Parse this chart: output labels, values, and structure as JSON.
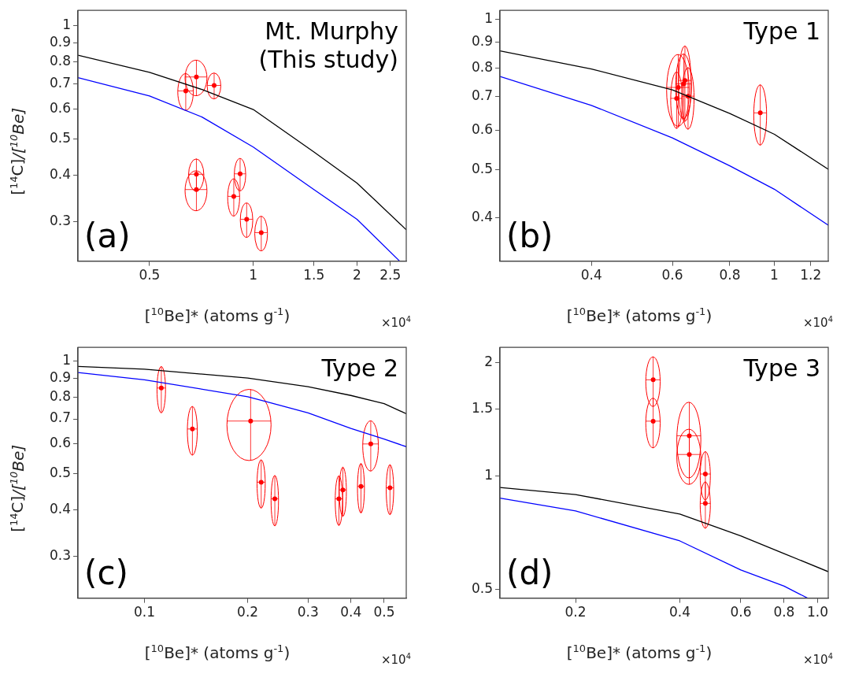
{
  "chart_data": [
    {
      "type": "scatter",
      "title": "Mt. Murphy\n(This study)",
      "xlabel": "[$^{10}$Be]* (atoms g$^{-1}$)",
      "ylabel": "[$^{14}$C]*/[$^{10}$Be]*",
      "annotations": [
        "(a)",
        "×10$^{4}$"
      ],
      "log": "xy",
      "xlim": [
        0.31,
        2.78
      ],
      "ylim": [
        0.236,
        1.098
      ],
      "xticks": [
        0.5,
        1,
        1.5,
        2,
        2.5
      ],
      "yticks": [
        0.3,
        0.4,
        0.5,
        0.6,
        0.7,
        0.8,
        0.9,
        1
      ],
      "series": [
        {
          "type": "line",
          "color": "#000000",
          "x": [
            0.31,
            0.5,
            0.71,
            1,
            1.5,
            2,
            2.78
          ],
          "values": [
            0.834,
            0.751,
            0.676,
            0.598,
            0.461,
            0.381,
            0.286
          ]
        },
        {
          "type": "line",
          "color": "#0000ff",
          "x": [
            0.31,
            0.5,
            0.71,
            1,
            1.5,
            2,
            2.66
          ],
          "values": [
            0.727,
            0.65,
            0.571,
            0.475,
            0.366,
            0.305,
            0.236
          ]
        },
        {
          "type": "scatter",
          "marker": "circle",
          "color": "#ff0000",
          "x": [
            0.637,
            0.684,
            0.77,
            0.684,
            0.684,
            0.916,
            0.878,
            0.957,
            1.055
          ],
          "values": [
            0.67,
            0.73,
            0.693,
            0.402,
            0.366,
            0.403,
            0.351,
            0.305,
            0.281
          ],
          "xerrors": [
            0.033,
            0.05,
            0.035,
            0.035,
            0.05,
            0.035,
            0.035,
            0.04,
            0.045
          ],
          "errors": [
            0.075,
            0.08,
            0.055,
            0.04,
            0.045,
            0.04,
            0.04,
            0.032,
            0.03
          ]
        }
      ]
    },
    {
      "type": "scatter",
      "title": "Type 1",
      "xlabel": "[$^{10}$Be]* (atoms g$^{-1}$)",
      "annotations": [
        "(b)",
        "×10$^{4}$"
      ],
      "log": "xy",
      "xlim": [
        0.253,
        1.31
      ],
      "ylim": [
        0.328,
        1.043
      ],
      "xticks": [
        0.4,
        0.6,
        0.8,
        1,
        1.2
      ],
      "yticks": [
        0.4,
        0.5,
        0.6,
        0.7,
        0.8,
        0.9,
        1
      ],
      "series": [
        {
          "type": "line",
          "color": "#000000",
          "x": [
            0.253,
            0.4,
            0.6,
            0.8,
            1,
            1.31
          ],
          "values": [
            0.865,
            0.796,
            0.723,
            0.648,
            0.589,
            0.501
          ]
        },
        {
          "type": "line",
          "color": "#0000ff",
          "x": [
            0.253,
            0.4,
            0.6,
            0.8,
            1,
            1.31
          ],
          "values": [
            0.769,
            0.673,
            0.579,
            0.509,
            0.457,
            0.387
          ]
        },
        {
          "type": "scatter",
          "marker": "circle",
          "color": "#ff0000",
          "x": [
            0.618,
            0.639,
            0.613,
            0.649,
            0.635,
            0.932
          ],
          "values": [
            0.731,
            0.755,
            0.695,
            0.702,
            0.743,
            0.65
          ],
          "xerrors": [
            0.035,
            0.02,
            0.018,
            0.02,
            0.025,
            0.03
          ],
          "errors": [
            0.12,
            0.13,
            0.09,
            0.1,
            0.11,
            0.09
          ]
        }
      ]
    },
    {
      "type": "scatter",
      "title": "Type 2",
      "xlabel": "[$^{10}$Be]* (atoms g$^{-1}$)",
      "ylabel": "[$^{14}$C]*/[$^{10}$Be]*",
      "annotations": [
        "(c)",
        "×10$^{4}$"
      ],
      "log": "xy",
      "xlim": [
        0.064,
        0.58
      ],
      "ylim": [
        0.232,
        1.088
      ],
      "xticks": [
        0.1,
        0.2,
        0.3,
        0.4,
        0.5
      ],
      "yticks": [
        0.3,
        0.4,
        0.5,
        0.6,
        0.7,
        0.8,
        0.9,
        1
      ],
      "series": [
        {
          "type": "line",
          "color": "#000000",
          "x": [
            0.064,
            0.1,
            0.2,
            0.3,
            0.4,
            0.5,
            0.58
          ],
          "values": [
            0.968,
            0.951,
            0.901,
            0.854,
            0.809,
            0.769,
            0.723
          ]
        },
        {
          "type": "line",
          "color": "#0000ff",
          "x": [
            0.064,
            0.1,
            0.2,
            0.3,
            0.4,
            0.5,
            0.58
          ],
          "values": [
            0.932,
            0.891,
            0.803,
            0.727,
            0.66,
            0.618,
            0.59
          ]
        },
        {
          "type": "scatter",
          "marker": "circle",
          "color": "#ff0000",
          "x": [
            0.112,
            0.138,
            0.204,
            0.219,
            0.24,
            0.369,
            0.379,
            0.428,
            0.457,
            0.52
          ],
          "values": [
            0.847,
            0.658,
            0.691,
            0.474,
            0.428,
            0.428,
            0.452,
            0.462,
            0.6,
            0.458
          ],
          "xerrors": [
            0.0032,
            0.0046,
            0.03,
            0.006,
            0.006,
            0.009,
            0.009,
            0.01,
            0.024,
            0.013
          ],
          "errors": [
            0.12,
            0.098,
            0.15,
            0.07,
            0.066,
            0.065,
            0.068,
            0.07,
            0.093,
            0.07
          ]
        }
      ]
    },
    {
      "type": "scatter",
      "title": "Type 3",
      "xlabel": "[$^{10}$Be]* (atoms g$^{-1}$)",
      "annotations": [
        "(d)",
        "×10$^{4}$"
      ],
      "log": "xy",
      "xlim": [
        0.121,
        1.073
      ],
      "ylim": [
        0.474,
        2.19
      ],
      "xticks": [
        0.2,
        0.4,
        0.6,
        0.8,
        {
          "value": 1,
          "label": "1.0"
        }
      ],
      "yticks": [
        0.5,
        1,
        1.5,
        2
      ],
      "series": [
        {
          "type": "line",
          "color": "#000000",
          "x": [
            0.121,
            0.2,
            0.4,
            0.6,
            0.8,
            1.073
          ],
          "values": [
            0.931,
            0.892,
            0.792,
            0.693,
            0.622,
            0.557
          ]
        },
        {
          "type": "line",
          "color": "#0000ff",
          "x": [
            0.121,
            0.2,
            0.4,
            0.6,
            0.8,
            0.935
          ],
          "values": [
            0.873,
            0.807,
            0.672,
            0.563,
            0.51,
            0.474
          ]
        },
        {
          "type": "scatter",
          "marker": "circle",
          "color": "#ff0000",
          "x": [
            0.335,
            0.335,
            0.426,
            0.426,
            0.474,
            0.474
          ],
          "values": [
            1.797,
            1.396,
            1.277,
            1.139,
            1.011,
            0.845
          ],
          "xerrors": [
            0.016,
            0.016,
            0.034,
            0.034,
            0.016,
            0.016
          ],
          "errors": [
            0.27,
            0.21,
            0.29,
            0.19,
            0.15,
            0.12
          ]
        }
      ]
    }
  ]
}
